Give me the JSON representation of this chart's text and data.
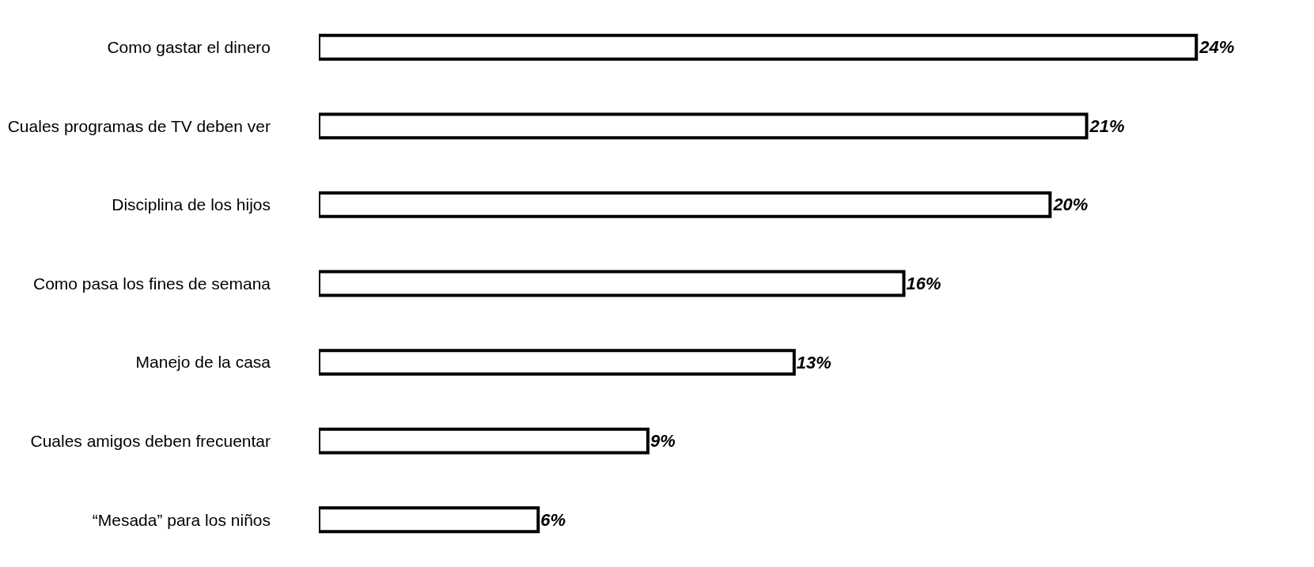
{
  "chart_data": {
    "type": "bar",
    "orientation": "horizontal",
    "categories": [
      "Como gastar el dinero",
      "Cuales programas de TV deben ver",
      "Disciplina de los hijos",
      "Como pasa los fines de semana",
      "Manejo de la casa",
      "Cuales amigos deben frecuentar",
      "“Mesada” para los niños"
    ],
    "values": [
      24,
      21,
      20,
      16,
      13,
      9,
      6
    ],
    "value_labels": [
      "24%",
      "21%",
      "20%",
      "16%",
      "13%",
      "9%",
      "6%"
    ],
    "color": "#ffffff",
    "legend": false,
    "tick_labels": "y"
  }
}
